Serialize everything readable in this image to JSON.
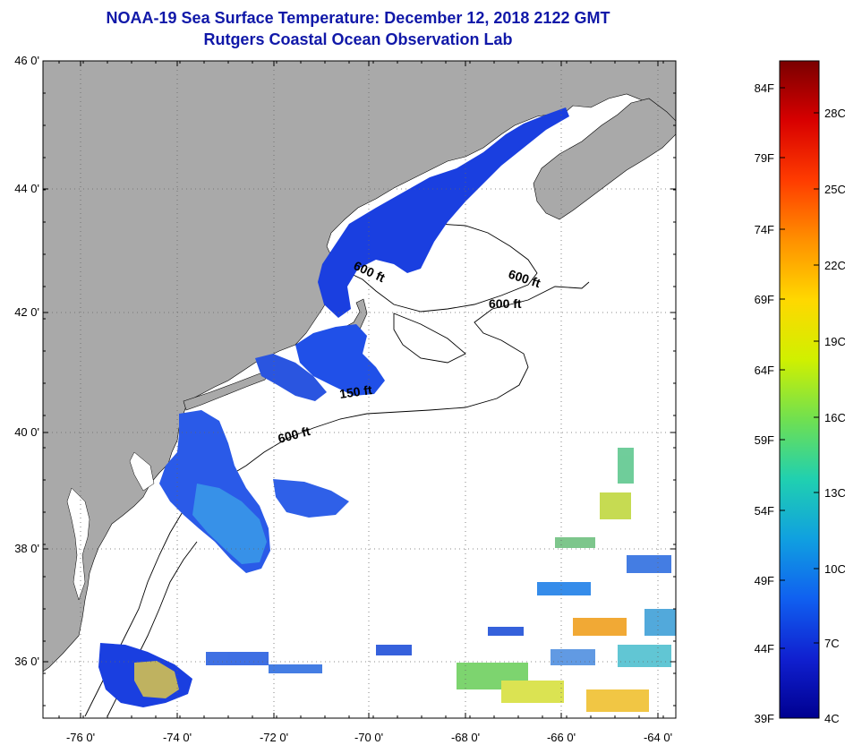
{
  "title": {
    "line1": "NOAA-19 Sea Surface Temperature:  December 12, 2018 2122 GMT",
    "line2": "Rutgers Coastal Ocean Observation Lab"
  },
  "axes": {
    "lat_labels": [
      "46 0'",
      "44 0'",
      "42 0'",
      "40 0'",
      "38 0'",
      "36 0'"
    ],
    "lon_labels": [
      "-76 0'",
      "-74 0'",
      "-72 0'",
      "-70 0'",
      "-68 0'",
      "-66 0'",
      "-64 0'"
    ]
  },
  "contours": [
    "600 ft",
    "600 ft",
    "600 ft",
    "150 ft",
    "600 ft"
  ],
  "colorbar": {
    "fahrenheit": [
      "84F",
      "79F",
      "74F",
      "69F",
      "64F",
      "59F",
      "54F",
      "49F",
      "44F",
      "39F"
    ],
    "celsius": [
      "28C",
      "25C",
      "22C",
      "19C",
      "16C",
      "13C",
      "10C",
      "7C",
      "4C"
    ],
    "gradient": [
      "#7a0000",
      "#d80000",
      "#ff3c00",
      "#ff9000",
      "#ffd800",
      "#d0f000",
      "#70e050",
      "#20d0b0",
      "#10a0e0",
      "#1060f0",
      "#1020d0",
      "#000090"
    ]
  },
  "colors": {
    "land": "#a9a9a9",
    "ocean": "#ffffff",
    "cold_water": "#1a3fe0",
    "title": "#1018a8"
  }
}
